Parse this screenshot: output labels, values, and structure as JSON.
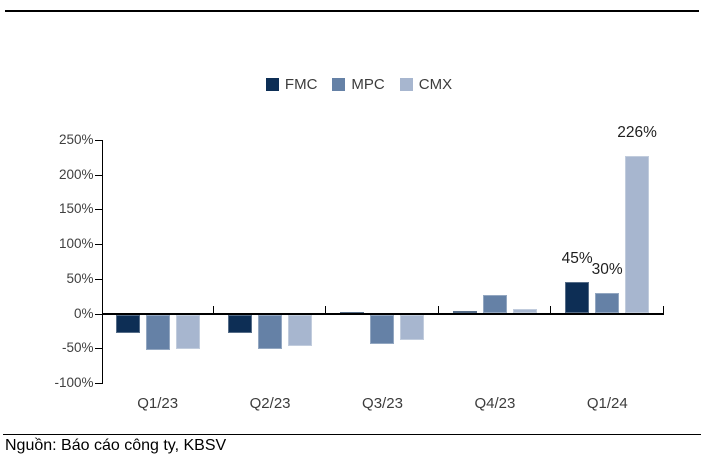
{
  "page": {
    "source_note": "Nguồn: Báo cáo công ty, KBSV"
  },
  "chart_data": {
    "type": "bar",
    "title": "",
    "xlabel": "",
    "ylabel": "",
    "categories": [
      "Q1/23",
      "Q2/23",
      "Q3/23",
      "Q4/23",
      "Q1/24"
    ],
    "series": [
      {
        "name": "FMC",
        "color": "#0d2e55",
        "values": [
          -27,
          -27,
          2,
          3,
          45
        ]
      },
      {
        "name": "MPC",
        "color": "#6581a6",
        "values": [
          -51,
          -49,
          -43,
          26,
          30
        ]
      },
      {
        "name": "CMX",
        "color": "#a7b6cf",
        "values": [
          -49,
          -46,
          -36,
          6,
          226
        ]
      }
    ],
    "point_labels": [
      {
        "series": "FMC",
        "category": "Q1/24",
        "text": "45%"
      },
      {
        "series": "MPC",
        "category": "Q1/24",
        "text": "30%"
      },
      {
        "series": "CMX",
        "category": "Q1/24",
        "text": "226%"
      }
    ],
    "y_ticks": [
      "250%",
      "200%",
      "150%",
      "100%",
      "50%",
      "0%",
      "-50%",
      "-100%"
    ],
    "y_tick_values": [
      250,
      200,
      150,
      100,
      50,
      0,
      -50,
      -100
    ],
    "ylim": [
      -100,
      250
    ],
    "legend_position": "top-center",
    "grid": false
  }
}
